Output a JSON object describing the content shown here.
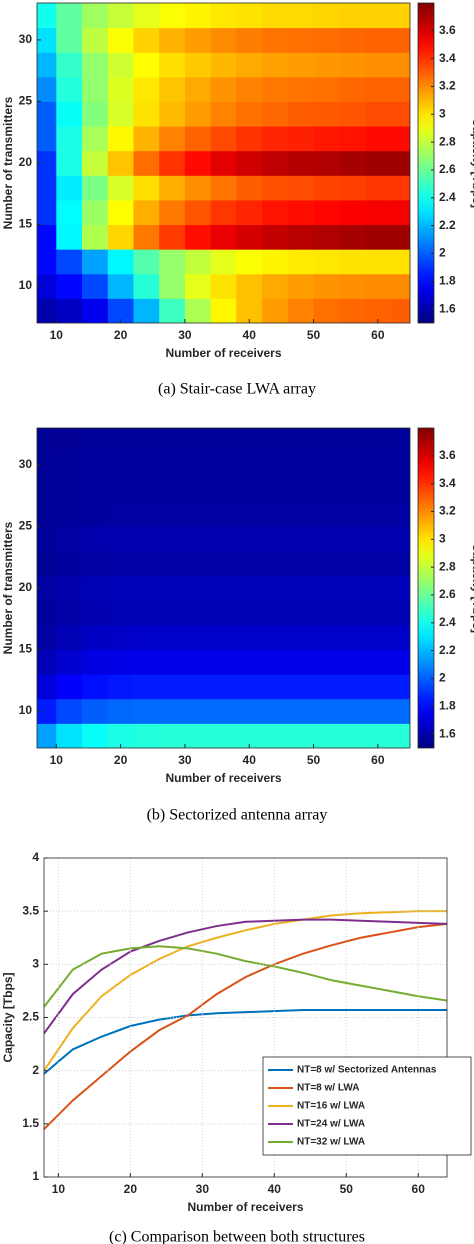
{
  "chart_data": [
    {
      "type": "heatmap",
      "caption": "(a) Stair-case LWA array",
      "xlabel": "Number of receivers",
      "ylabel": "Number of transmitters",
      "colorbar_label": "Capacity [Tbps]",
      "colormap": "jet",
      "x": [
        8,
        12,
        16,
        20,
        24,
        28,
        32,
        36,
        40,
        44,
        48,
        52,
        56,
        60,
        64
      ],
      "y": [
        8,
        10,
        12,
        14,
        16,
        18,
        20,
        22,
        24,
        26,
        28,
        30,
        32
      ],
      "z": [
        [
          1.6,
          1.65,
          1.75,
          1.95,
          2.2,
          2.5,
          2.75,
          2.95,
          3.08,
          3.16,
          3.22,
          3.26,
          3.28,
          3.29,
          3.3
        ],
        [
          1.7,
          1.8,
          1.95,
          2.2,
          2.45,
          2.7,
          2.88,
          3.0,
          3.08,
          3.13,
          3.16,
          3.18,
          3.19,
          3.2,
          3.2
        ],
        [
          1.8,
          1.95,
          2.15,
          2.35,
          2.55,
          2.7,
          2.8,
          2.88,
          2.93,
          2.96,
          2.98,
          2.99,
          3.0,
          3.0,
          3.0
        ],
        [
          1.8,
          2.35,
          2.76,
          3.03,
          3.24,
          3.38,
          3.48,
          3.56,
          3.61,
          3.65,
          3.67,
          3.69,
          3.71,
          3.73,
          3.73
        ],
        [
          1.9,
          2.36,
          2.71,
          2.94,
          3.12,
          3.24,
          3.32,
          3.39,
          3.43,
          3.47,
          3.48,
          3.5,
          3.52,
          3.53,
          3.53
        ],
        [
          1.9,
          2.32,
          2.64,
          2.85,
          3.01,
          3.12,
          3.19,
          3.25,
          3.3,
          3.33,
          3.34,
          3.36,
          3.37,
          3.39,
          3.39
        ],
        [
          1.9,
          2.42,
          2.81,
          3.07,
          3.27,
          3.4,
          3.49,
          3.57,
          3.62,
          3.66,
          3.68,
          3.69,
          3.71,
          3.73,
          3.73
        ],
        [
          2.0,
          2.42,
          2.74,
          2.95,
          3.11,
          3.22,
          3.29,
          3.35,
          3.4,
          3.43,
          3.44,
          3.46,
          3.47,
          3.49,
          3.49
        ],
        [
          2.0,
          2.38,
          2.66,
          2.85,
          3.0,
          3.09,
          3.16,
          3.22,
          3.26,
          3.28,
          3.3,
          3.31,
          3.32,
          3.34,
          3.34
        ],
        [
          2.1,
          2.44,
          2.69,
          2.86,
          2.99,
          3.07,
          3.13,
          3.18,
          3.22,
          3.24,
          3.25,
          3.26,
          3.28,
          3.29,
          3.29
        ],
        [
          2.2,
          2.48,
          2.69,
          2.83,
          2.94,
          3.01,
          3.06,
          3.1,
          3.13,
          3.15,
          3.16,
          3.17,
          3.18,
          3.19,
          3.19
        ],
        [
          2.3,
          2.58,
          2.79,
          2.93,
          3.04,
          3.11,
          3.16,
          3.2,
          3.23,
          3.25,
          3.26,
          3.27,
          3.28,
          3.29,
          3.29
        ],
        [
          2.4,
          2.58,
          2.72,
          2.81,
          2.88,
          2.93,
          2.96,
          2.99,
          3.0,
          3.02,
          3.02,
          3.03,
          3.04,
          3.04,
          3.04
        ]
      ],
      "xlim": [
        7,
        65
      ],
      "ylim": [
        7,
        33
      ],
      "xticks": [
        10,
        20,
        30,
        40,
        50,
        60
      ],
      "yticks": [
        10,
        15,
        20,
        25,
        30
      ],
      "clim": [
        1.5,
        3.8
      ],
      "cticks": [
        1.6,
        1.8,
        2,
        2.2,
        2.4,
        2.6,
        2.8,
        3,
        3.2,
        3.4,
        3.6
      ]
    },
    {
      "type": "heatmap",
      "caption": "(b) Sectorized antenna array",
      "xlabel": "Number of receivers",
      "ylabel": "Number of transmitters",
      "colorbar_label": "Capacity [Tbps]",
      "colormap": "jet",
      "x": [
        8,
        12,
        16,
        20,
        24,
        28,
        32,
        36,
        40,
        44,
        48,
        52,
        56,
        60,
        64
      ],
      "y": [
        8,
        10,
        12,
        14,
        16,
        18,
        20,
        22,
        24,
        26,
        28,
        30,
        32
      ],
      "z": [
        [
          2.15,
          2.3,
          2.38,
          2.42,
          2.44,
          2.45,
          2.45,
          2.45,
          2.45,
          2.45,
          2.45,
          2.45,
          2.45,
          2.45,
          2.45
        ],
        [
          1.85,
          1.95,
          2.0,
          2.02,
          2.03,
          2.03,
          2.03,
          2.03,
          2.03,
          2.03,
          2.03,
          2.03,
          2.03,
          2.03,
          2.03
        ],
        [
          1.7,
          1.78,
          1.82,
          1.84,
          1.85,
          1.85,
          1.85,
          1.85,
          1.85,
          1.85,
          1.85,
          1.85,
          1.85,
          1.85,
          1.85
        ],
        [
          1.62,
          1.68,
          1.72,
          1.73,
          1.74,
          1.74,
          1.74,
          1.74,
          1.74,
          1.74,
          1.74,
          1.74,
          1.74,
          1.74,
          1.74
        ],
        [
          1.58,
          1.62,
          1.65,
          1.66,
          1.67,
          1.67,
          1.67,
          1.67,
          1.67,
          1.67,
          1.67,
          1.67,
          1.67,
          1.67,
          1.67
        ],
        [
          1.56,
          1.59,
          1.61,
          1.62,
          1.62,
          1.62,
          1.62,
          1.62,
          1.62,
          1.62,
          1.62,
          1.62,
          1.62,
          1.62,
          1.62
        ],
        [
          1.58,
          1.6,
          1.62,
          1.63,
          1.63,
          1.63,
          1.63,
          1.63,
          1.63,
          1.63,
          1.63,
          1.63,
          1.63,
          1.63,
          1.63
        ],
        [
          1.55,
          1.57,
          1.58,
          1.59,
          1.59,
          1.59,
          1.59,
          1.59,
          1.59,
          1.59,
          1.59,
          1.59,
          1.59,
          1.59,
          1.59
        ],
        [
          1.56,
          1.58,
          1.6,
          1.61,
          1.61,
          1.61,
          1.61,
          1.61,
          1.61,
          1.61,
          1.61,
          1.61,
          1.61,
          1.61,
          1.61
        ],
        [
          1.55,
          1.56,
          1.57,
          1.58,
          1.58,
          1.58,
          1.58,
          1.58,
          1.58,
          1.58,
          1.58,
          1.58,
          1.58,
          1.58,
          1.58
        ],
        [
          1.55,
          1.56,
          1.57,
          1.57,
          1.57,
          1.57,
          1.57,
          1.57,
          1.57,
          1.57,
          1.57,
          1.57,
          1.57,
          1.57,
          1.57
        ],
        [
          1.55,
          1.56,
          1.57,
          1.57,
          1.57,
          1.57,
          1.57,
          1.57,
          1.57,
          1.57,
          1.57,
          1.57,
          1.57,
          1.57,
          1.57
        ],
        [
          1.55,
          1.55,
          1.56,
          1.56,
          1.56,
          1.56,
          1.56,
          1.56,
          1.56,
          1.56,
          1.56,
          1.56,
          1.56,
          1.56,
          1.56
        ]
      ],
      "xlim": [
        7,
        65
      ],
      "ylim": [
        7,
        33
      ],
      "xticks": [
        10,
        20,
        30,
        40,
        50,
        60
      ],
      "yticks": [
        10,
        15,
        20,
        25,
        30
      ],
      "clim": [
        1.5,
        3.8
      ],
      "cticks": [
        1.6,
        1.8,
        2,
        2.2,
        2.4,
        2.6,
        2.8,
        3,
        3.2,
        3.4,
        3.6
      ]
    },
    {
      "type": "line",
      "caption": "(c) Comparison between both structures",
      "xlabel": "Number of receivers",
      "ylabel": "Capacity [Tbps]",
      "x": [
        8,
        12,
        16,
        20,
        24,
        28,
        32,
        36,
        40,
        44,
        48,
        52,
        56,
        60,
        64
      ],
      "series": [
        {
          "name": "NT=8 w/ Sectorized Antennas",
          "color": "#0072bd",
          "values": [
            1.97,
            2.2,
            2.32,
            2.42,
            2.48,
            2.52,
            2.54,
            2.55,
            2.56,
            2.57,
            2.57,
            2.57,
            2.57,
            2.57,
            2.57
          ]
        },
        {
          "name": "NT=8 w/ LWA",
          "color": "#d95319",
          "values": [
            1.45,
            1.72,
            1.95,
            2.18,
            2.38,
            2.52,
            2.72,
            2.88,
            3.0,
            3.1,
            3.18,
            3.25,
            3.3,
            3.35,
            3.38
          ]
        },
        {
          "name": "NT=16 w/ LWA",
          "color": "#edb120",
          "values": [
            2.0,
            2.4,
            2.7,
            2.9,
            3.05,
            3.17,
            3.25,
            3.32,
            3.38,
            3.42,
            3.46,
            3.48,
            3.49,
            3.5,
            3.5
          ]
        },
        {
          "name": "NT=24 w/ LWA",
          "color": "#7e2f8e",
          "values": [
            2.35,
            2.72,
            2.95,
            3.12,
            3.22,
            3.3,
            3.36,
            3.4,
            3.41,
            3.42,
            3.42,
            3.41,
            3.4,
            3.39,
            3.38
          ]
        },
        {
          "name": "NT=32 w/ LWA",
          "color": "#77ac30",
          "values": [
            2.6,
            2.95,
            3.1,
            3.15,
            3.17,
            3.15,
            3.1,
            3.03,
            2.98,
            2.92,
            2.85,
            2.8,
            2.75,
            2.7,
            2.66
          ]
        }
      ],
      "xlim": [
        8,
        64
      ],
      "ylim": [
        1,
        4
      ],
      "xticks": [
        10,
        20,
        30,
        40,
        50,
        60
      ],
      "yticks": [
        1,
        1.5,
        2,
        2.5,
        3,
        3.5,
        4
      ],
      "grid": true,
      "legend": "lower right"
    }
  ]
}
